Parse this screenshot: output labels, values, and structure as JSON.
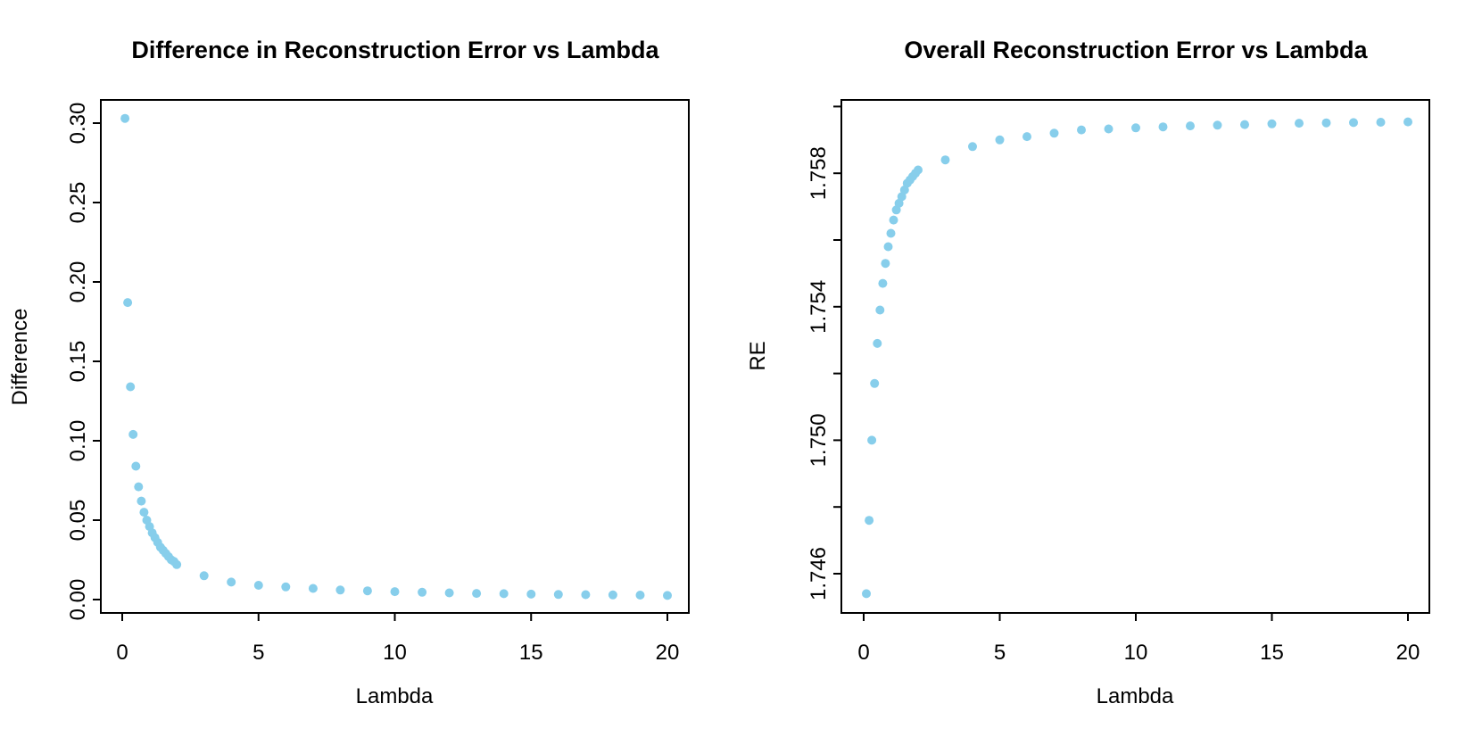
{
  "figure": {
    "background": "#ffffff",
    "point_color": "#87CEEB",
    "axis_color": "#000000"
  },
  "chart_data": [
    {
      "type": "scatter",
      "title": "Difference in Reconstruction Error vs Lambda",
      "xlabel": "Lambda",
      "ylabel": "Difference",
      "xlim": [
        0,
        20
      ],
      "ylim": [
        0.0,
        0.3
      ],
      "grid": false,
      "legend": "none",
      "point_color": "#87CEEB",
      "xticks": [
        0,
        5,
        10,
        15,
        20
      ],
      "xtick_labels": [
        "0",
        "5",
        "10",
        "15",
        "20"
      ],
      "yticks": [
        0.0,
        0.05,
        0.1,
        0.15,
        0.2,
        0.25,
        0.3
      ],
      "ytick_labels": [
        "0.00",
        "0.05",
        "0.10",
        "0.15",
        "0.20",
        "0.25",
        "0.30"
      ],
      "x": [
        0.1,
        0.2,
        0.3,
        0.4,
        0.5,
        0.6,
        0.7,
        0.8,
        0.9,
        1.0,
        1.1,
        1.2,
        1.3,
        1.4,
        1.5,
        1.6,
        1.7,
        1.8,
        1.9,
        2.0,
        3,
        4,
        5,
        6,
        7,
        8,
        9,
        10,
        11,
        12,
        13,
        14,
        15,
        16,
        17,
        18,
        19,
        20
      ],
      "y": [
        0.303,
        0.187,
        0.134,
        0.104,
        0.084,
        0.071,
        0.062,
        0.055,
        0.05,
        0.046,
        0.042,
        0.039,
        0.036,
        0.033,
        0.031,
        0.029,
        0.027,
        0.025,
        0.024,
        0.022,
        0.015,
        0.011,
        0.009,
        0.008,
        0.007,
        0.006,
        0.0055,
        0.005,
        0.0046,
        0.0042,
        0.0039,
        0.0037,
        0.0034,
        0.0032,
        0.0031,
        0.0029,
        0.0028,
        0.0026
      ]
    },
    {
      "type": "scatter",
      "title": "Overall Reconstruction Error vs Lambda",
      "xlabel": "Lambda",
      "ylabel": "RE",
      "xlim": [
        0,
        20
      ],
      "ylim": [
        1.745,
        1.76
      ],
      "grid": false,
      "legend": "none",
      "point_color": "#87CEEB",
      "xticks": [
        0,
        5,
        10,
        15,
        20
      ],
      "xtick_labels": [
        "0",
        "5",
        "10",
        "15",
        "20"
      ],
      "yticks": [
        1.746,
        1.748,
        1.75,
        1.752,
        1.754,
        1.756,
        1.758,
        1.76
      ],
      "ytick_labels": [
        "1.746",
        "",
        "1.750",
        "",
        "1.754",
        "",
        "1.758",
        ""
      ],
      "x": [
        0.1,
        0.2,
        0.3,
        0.4,
        0.5,
        0.6,
        0.7,
        0.8,
        0.9,
        1.0,
        1.1,
        1.2,
        1.3,
        1.4,
        1.5,
        1.6,
        1.7,
        1.8,
        1.9,
        2.0,
        3,
        4,
        5,
        6,
        7,
        8,
        9,
        10,
        11,
        12,
        13,
        14,
        15,
        16,
        17,
        18,
        19,
        20
      ],
      "y": [
        1.7454,
        1.7476,
        1.75,
        1.7517,
        1.7529,
        1.7539,
        1.7547,
        1.7553,
        1.7558,
        1.7562,
        1.7566,
        1.7569,
        1.7571,
        1.7573,
        1.7575,
        1.7577,
        1.7578,
        1.7579,
        1.758,
        1.7581,
        1.7584,
        1.7588,
        1.759,
        1.7591,
        1.7592,
        1.7593,
        1.75933,
        1.75936,
        1.75939,
        1.75942,
        1.75944,
        1.75946,
        1.75948,
        1.7595,
        1.75951,
        1.75952,
        1.75953,
        1.75954
      ]
    }
  ]
}
